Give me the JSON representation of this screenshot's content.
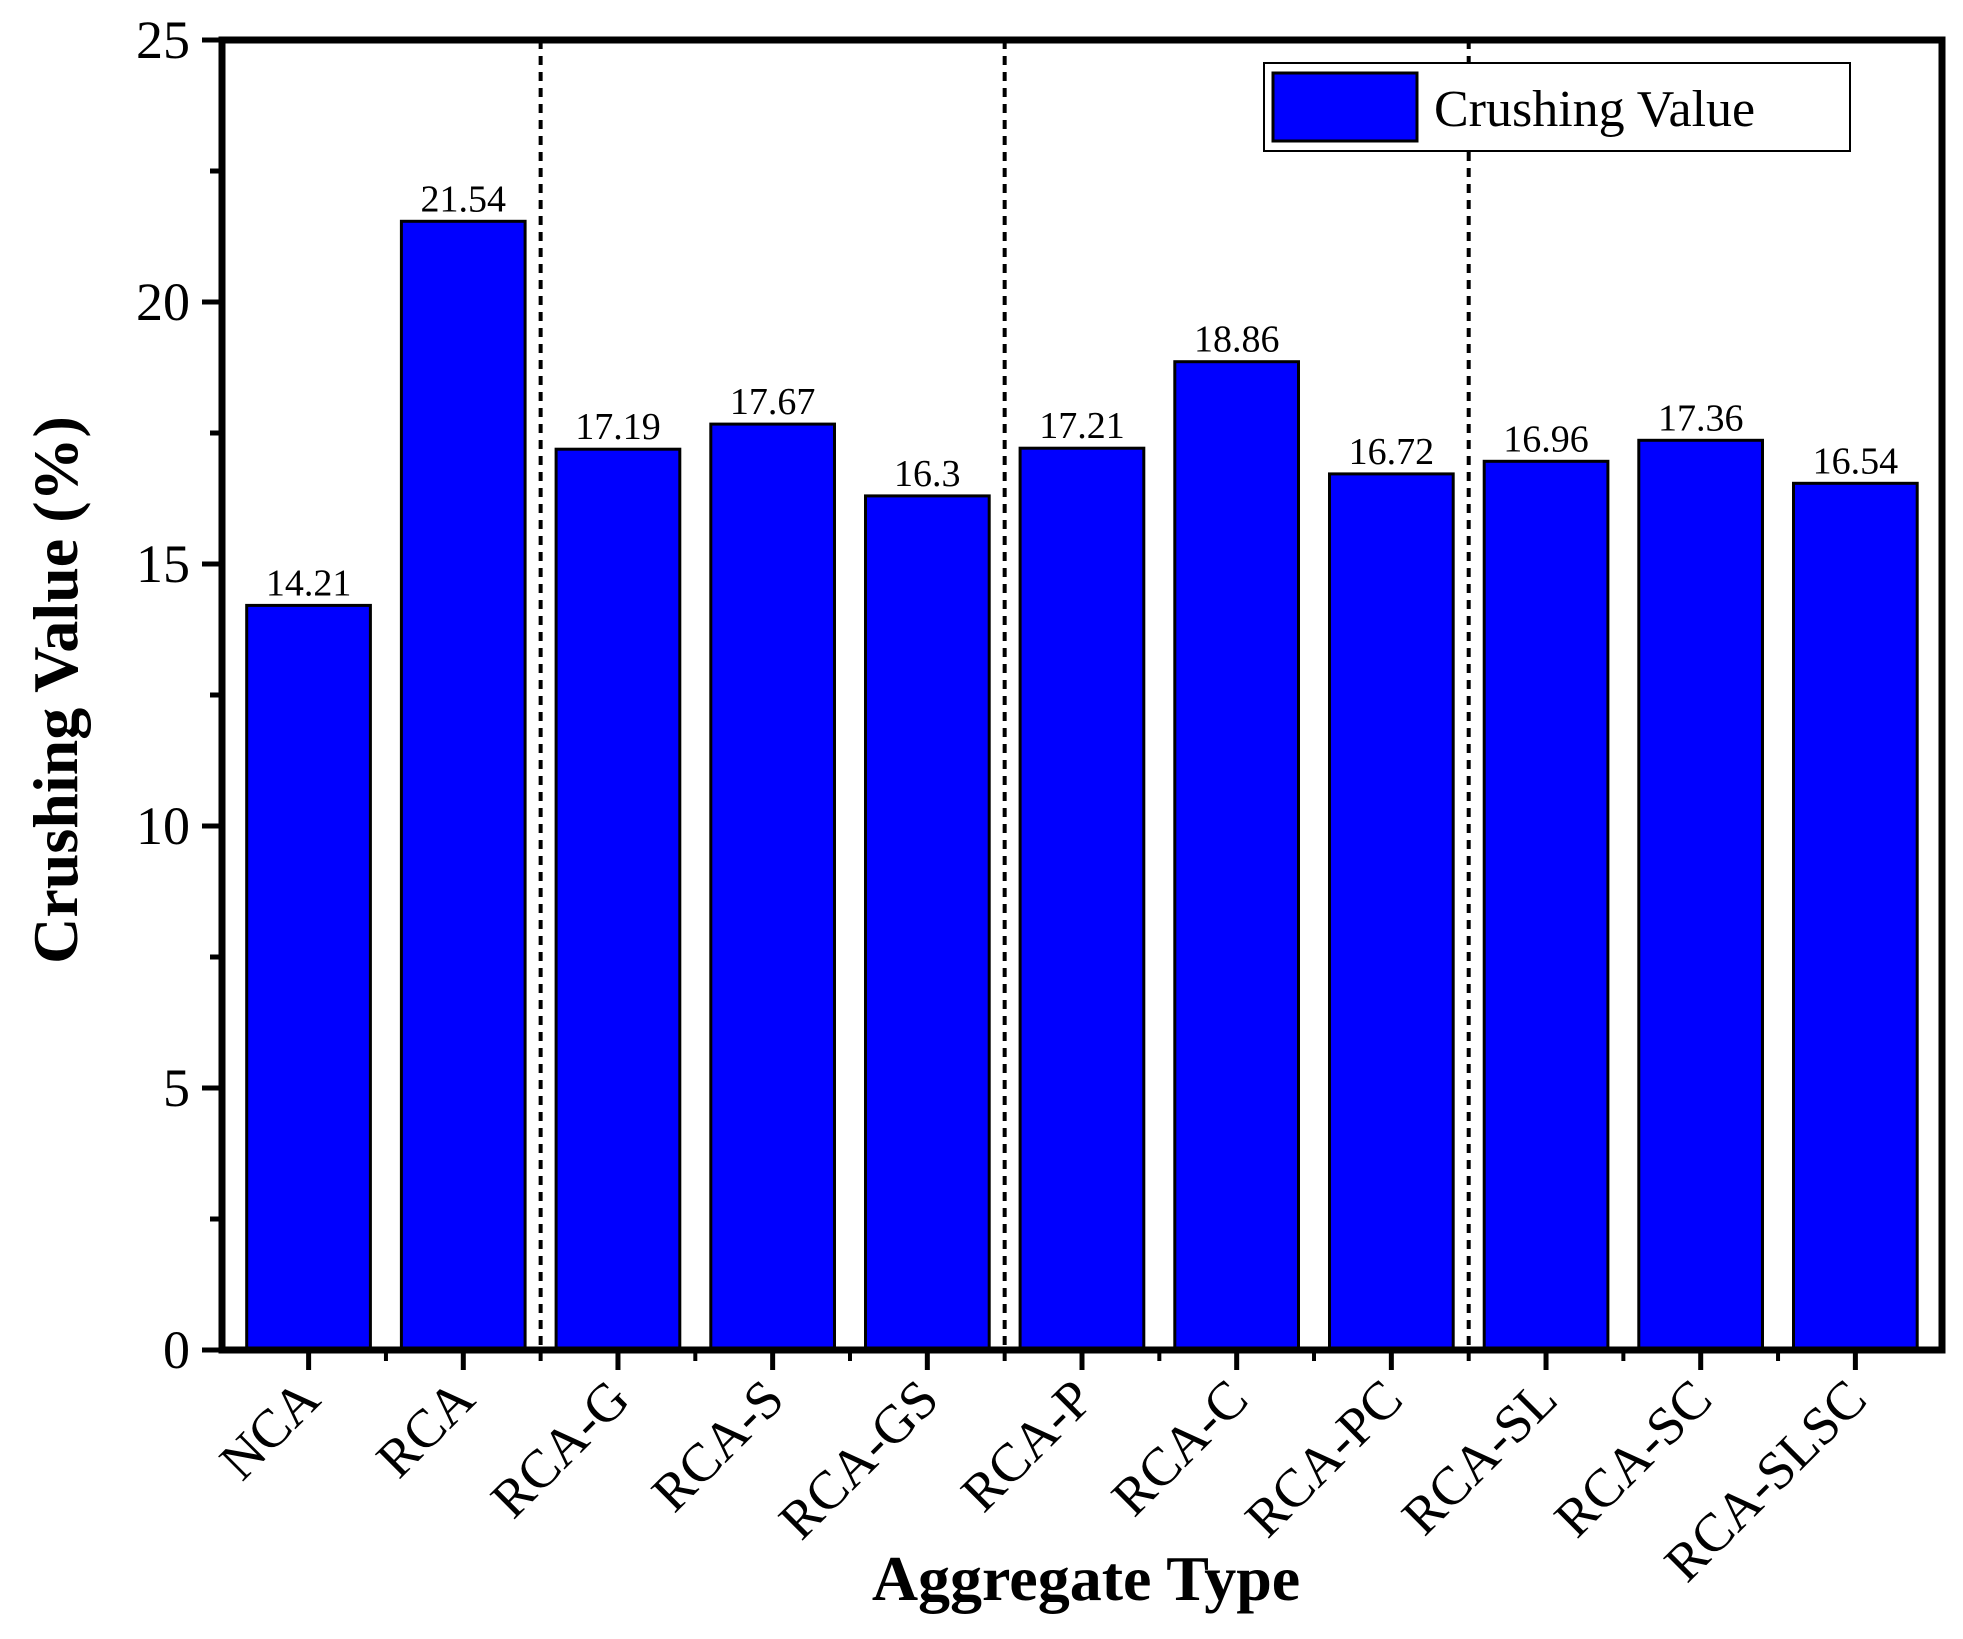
{
  "chart_data": {
    "type": "bar",
    "title": "",
    "xlabel": "Aggregate Type",
    "ylabel": "Crushing Value (%)",
    "ylim": [
      0,
      25
    ],
    "yticks": [
      "0",
      "5",
      "10",
      "15",
      "20",
      "25"
    ],
    "categories": [
      "NCA",
      "RCA",
      "RCA-G",
      "RCA-S",
      "RCA-GS",
      "RCA-P",
      "RCA-C",
      "RCA-PC",
      "RCA-SL",
      "RCA-SC",
      "RCA-SLSC"
    ],
    "series": [
      {
        "name": "Crushing Value",
        "color": "#0000ff",
        "values": [
          14.21,
          21.54,
          17.19,
          17.67,
          16.3,
          17.21,
          18.86,
          16.72,
          16.96,
          17.36,
          16.54
        ],
        "labels": [
          "14.21",
          "21.54",
          "17.19",
          "17.67",
          "16.3",
          "17.21",
          "18.86",
          "16.72",
          "16.96",
          "17.36",
          "16.54"
        ]
      }
    ],
    "group_separators_after": [
      1,
      4,
      7
    ],
    "separator_style": "dashed",
    "legend": {
      "position": "top-right",
      "label": "Crushing Value"
    },
    "grid": false
  }
}
